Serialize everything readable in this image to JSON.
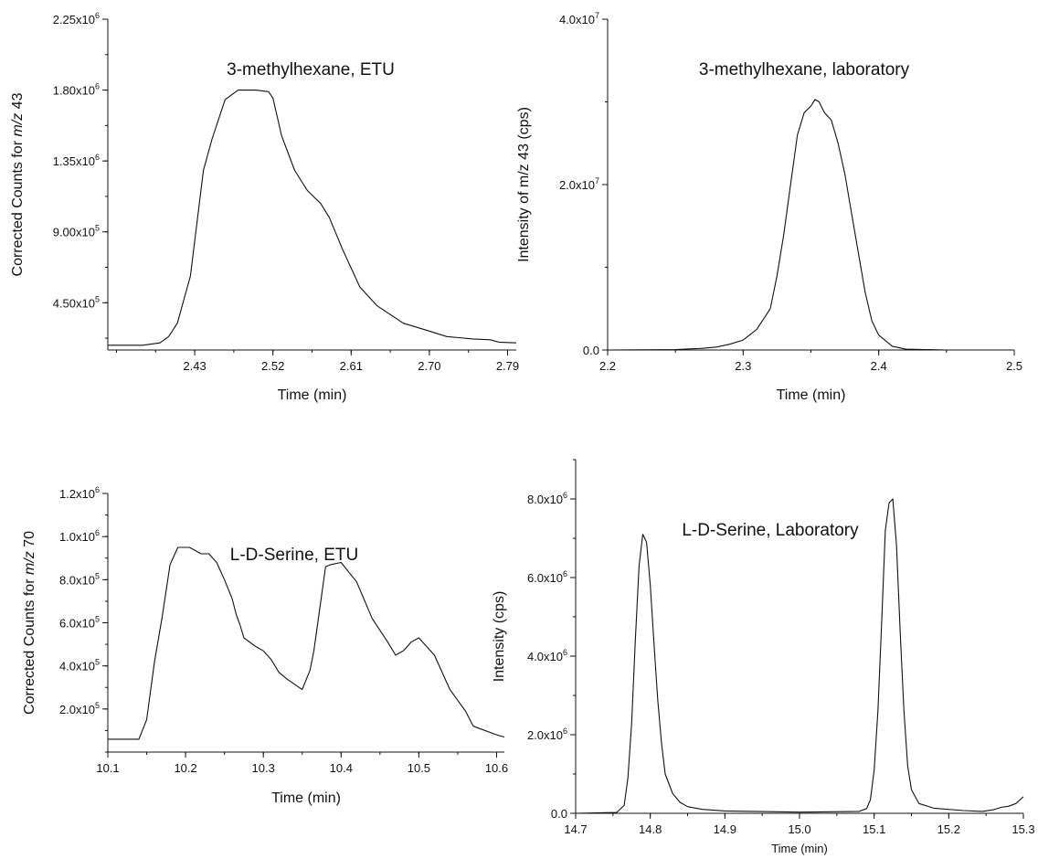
{
  "chart_data": [
    {
      "type": "line",
      "title": "3-methylhexane, ETU",
      "xlabel": "Time (min)",
      "ylabel_parts": [
        "Corrected Counts for ",
        "m/z",
        " 43"
      ],
      "xlim": [
        2.33,
        2.8
      ],
      "ylim": [
        150000,
        2250000
      ],
      "x_ticks": [
        2.43,
        2.52,
        2.61,
        2.7,
        2.79
      ],
      "x_tick_labels": [
        "2.43",
        "2.52",
        "2.61",
        "2.70",
        "2.79"
      ],
      "x_minor_step": 0.045,
      "y_ticks": [
        {
          "value": 450000,
          "mantissa": "4.50x10",
          "exp": "5"
        },
        {
          "value": 900000,
          "mantissa": "9.00x10",
          "exp": "5"
        },
        {
          "value": 1350000,
          "mantissa": "1.35x10",
          "exp": "6"
        },
        {
          "value": 1800000,
          "mantissa": "1.80x10",
          "exp": "6"
        },
        {
          "value": 2250000,
          "mantissa": "2.25x10",
          "exp": "6"
        }
      ],
      "y_minor_step": 225000,
      "x": [
        2.33,
        2.37,
        2.39,
        2.4,
        2.41,
        2.425,
        2.44,
        2.45,
        2.465,
        2.48,
        2.5,
        2.515,
        2.52,
        2.53,
        2.545,
        2.56,
        2.575,
        2.585,
        2.6,
        2.62,
        2.64,
        2.67,
        2.7,
        2.72,
        2.75,
        2.77,
        2.78,
        2.8
      ],
      "y": [
        180000,
        180000,
        195000,
        235000,
        320000,
        620000,
        1290000,
        1490000,
        1740000,
        1800000,
        1800000,
        1790000,
        1750000,
        1510000,
        1290000,
        1160000,
        1080000,
        990000,
        790000,
        550000,
        430000,
        320000,
        270000,
        235000,
        220000,
        215000,
        200000,
        195000
      ]
    },
    {
      "type": "line",
      "title": "3-methylhexane, laboratory",
      "xlabel": "Time (min)",
      "ylabel": "Intensity of m/z 43 (cps)",
      "xlim": [
        2.2,
        2.5
      ],
      "ylim": [
        0,
        40000000
      ],
      "x_ticks": [
        2.2,
        2.3,
        2.4,
        2.5
      ],
      "x_tick_labels": [
        "2.2",
        "2.3",
        "2.4",
        "2.5"
      ],
      "x_minor_step": 0.05,
      "y_ticks": [
        {
          "value": 0,
          "mantissa": "0.0",
          "exp": ""
        },
        {
          "value": 20000000,
          "mantissa": "2.0x10",
          "exp": "7"
        },
        {
          "value": 40000000,
          "mantissa": "4.0x10",
          "exp": "7"
        }
      ],
      "y_minor_step": 10000000,
      "x": [
        2.2,
        2.25,
        2.27,
        2.28,
        2.29,
        2.3,
        2.31,
        2.32,
        2.325,
        2.33,
        2.335,
        2.34,
        2.345,
        2.35,
        2.353,
        2.356,
        2.36,
        2.365,
        2.37,
        2.375,
        2.38,
        2.39,
        2.395,
        2.4,
        2.41,
        2.42,
        2.45,
        2.5
      ],
      "y": [
        0,
        50000,
        200000,
        350000,
        700000,
        1200000,
        2500000,
        5000000,
        9000000,
        14000000,
        20000000,
        26000000,
        28700000,
        29500000,
        30300000,
        30000000,
        28700000,
        27800000,
        25000000,
        21300000,
        16500000,
        7000000,
        3500000,
        1800000,
        450000,
        100000,
        0,
        0
      ]
    },
    {
      "type": "line",
      "title": "L-D-Serine, ETU",
      "xlabel": "Time (min)",
      "ylabel_parts": [
        "Corrected Counts for ",
        "m/z",
        " 70"
      ],
      "xlim": [
        10.1,
        10.61
      ],
      "ylim": [
        0,
        1200000
      ],
      "x_ticks": [
        10.1,
        10.2,
        10.3,
        10.4,
        10.5,
        10.6
      ],
      "x_tick_labels": [
        "10.1",
        "10.2",
        "10.3",
        "10.4",
        "10.5",
        "10.6"
      ],
      "x_minor_step": 0.05,
      "y_ticks": [
        {
          "value": 200000,
          "mantissa": "2.0x10",
          "exp": "5"
        },
        {
          "value": 400000,
          "mantissa": "4.0x10",
          "exp": "5"
        },
        {
          "value": 600000,
          "mantissa": "6.0x10",
          "exp": "5"
        },
        {
          "value": 800000,
          "mantissa": "8.0x10",
          "exp": "5"
        },
        {
          "value": 1000000,
          "mantissa": "1.0x10",
          "exp": "6"
        },
        {
          "value": 1200000,
          "mantissa": "1.2x10",
          "exp": "6"
        }
      ],
      "y_minor_step": 100000,
      "x": [
        10.1,
        10.14,
        10.15,
        10.16,
        10.17,
        10.18,
        10.19,
        10.2,
        10.205,
        10.22,
        10.23,
        10.24,
        10.25,
        10.26,
        10.265,
        10.27,
        10.275,
        10.29,
        10.3,
        10.31,
        10.32,
        10.33,
        10.35,
        10.36,
        10.365,
        10.37,
        10.38,
        10.387,
        10.4,
        10.42,
        10.44,
        10.46,
        10.47,
        10.48,
        10.49,
        10.5,
        10.52,
        10.54,
        10.56,
        10.57,
        10.6,
        10.61
      ],
      "y": [
        60000,
        60000,
        150000,
        420000,
        630000,
        870000,
        950000,
        950000,
        950000,
        920000,
        920000,
        880000,
        800000,
        710000,
        640000,
        590000,
        530000,
        490000,
        470000,
        430000,
        370000,
        340000,
        290000,
        380000,
        470000,
        600000,
        860000,
        870000,
        880000,
        790000,
        620000,
        510000,
        450000,
        470000,
        510000,
        530000,
        450000,
        290000,
        190000,
        120000,
        80000,
        70000
      ]
    },
    {
      "type": "line",
      "title": "L-D-Serine, Laboratory",
      "xlabel": "Time (min)",
      "ylabel": "Intensity (cps)",
      "xlim": [
        14.7,
        15.3
      ],
      "ylim": [
        0,
        9000000
      ],
      "x_ticks": [
        14.7,
        14.8,
        14.9,
        15.0,
        15.1,
        15.2,
        15.3
      ],
      "x_tick_labels": [
        "14.7",
        "14.8",
        "14.9",
        "15.0",
        "15.1",
        "15.2",
        "15.3"
      ],
      "x_minor_step": 0.05,
      "y_ticks": [
        {
          "value": 0,
          "mantissa": "0.0",
          "exp": ""
        },
        {
          "value": 2000000,
          "mantissa": "2.0x10",
          "exp": "6"
        },
        {
          "value": 4000000,
          "mantissa": "4.0x10",
          "exp": "6"
        },
        {
          "value": 6000000,
          "mantissa": "6.0x10",
          "exp": "6"
        },
        {
          "value": 8000000,
          "mantissa": "8.0x10",
          "exp": "6"
        }
      ],
      "y_minor_step": 1000000,
      "x": [
        14.7,
        14.755,
        14.765,
        14.77,
        14.775,
        14.78,
        14.785,
        14.79,
        14.795,
        14.8,
        14.805,
        14.81,
        14.815,
        14.82,
        14.83,
        14.84,
        14.85,
        14.87,
        14.9,
        15.0,
        15.08,
        15.09,
        15.095,
        15.1,
        15.105,
        15.11,
        15.115,
        15.12,
        15.125,
        15.13,
        15.135,
        15.14,
        15.145,
        15.15,
        15.16,
        15.18,
        15.22,
        15.245,
        15.26,
        15.27,
        15.28,
        15.29,
        15.3
      ],
      "y": [
        0,
        20000,
        200000,
        900000,
        2300000,
        4400000,
        6300000,
        7100000,
        6900000,
        5800000,
        4300000,
        2900000,
        1800000,
        1000000,
        500000,
        280000,
        170000,
        100000,
        60000,
        30000,
        50000,
        120000,
        350000,
        1100000,
        2600000,
        4800000,
        7200000,
        7900000,
        8000000,
        6800000,
        4600000,
        2600000,
        1200000,
        600000,
        250000,
        130000,
        70000,
        50000,
        90000,
        150000,
        180000,
        250000,
        420000
      ]
    }
  ]
}
